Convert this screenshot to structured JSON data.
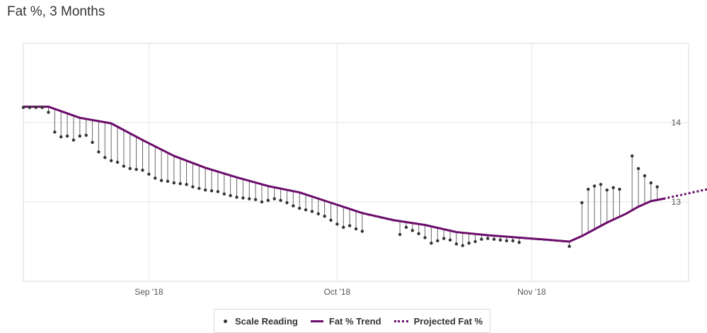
{
  "title": "Fat %, 3 Months",
  "legend": {
    "scale_reading": "Scale Reading",
    "trend": "Fat % Trend",
    "projected": "Projected Fat %"
  },
  "colors": {
    "trend": "#6b0c6b",
    "dots": "#333333",
    "stems": "#666666",
    "grid": "#e6e6e6",
    "missing_trend": "#d0d0d0"
  },
  "chart_data": {
    "type": "line",
    "title": "Fat %, 3 Months",
    "xlabel": "",
    "ylabel": "",
    "x_ticks": [
      "Sep '18",
      "Oct '18",
      "Nov '18"
    ],
    "y_ticks": [
      13,
      14
    ],
    "ylim": [
      12.0,
      15.0
    ],
    "xlim": [
      "2018-08-12",
      "2018-11-26"
    ],
    "grid": true,
    "legend_position": "bottom",
    "series": [
      {
        "name": "Scale Reading",
        "kind": "points",
        "points": [
          [
            "2018-08-12",
            14.19
          ],
          [
            "2018-08-13",
            14.19
          ],
          [
            "2018-08-14",
            14.19
          ],
          [
            "2018-08-15",
            14.19
          ],
          [
            "2018-08-16",
            14.13
          ],
          [
            "2018-08-17",
            13.88
          ],
          [
            "2018-08-18",
            13.82
          ],
          [
            "2018-08-19",
            13.83
          ],
          [
            "2018-08-20",
            13.78
          ],
          [
            "2018-08-21",
            13.83
          ],
          [
            "2018-08-22",
            13.84
          ],
          [
            "2018-08-23",
            13.75
          ],
          [
            "2018-08-24",
            13.63
          ],
          [
            "2018-08-25",
            13.56
          ],
          [
            "2018-08-26",
            13.52
          ],
          [
            "2018-08-27",
            13.5
          ],
          [
            "2018-08-28",
            13.45
          ],
          [
            "2018-08-29",
            13.42
          ],
          [
            "2018-08-30",
            13.41
          ],
          [
            "2018-08-31",
            13.4
          ],
          [
            "2018-09-01",
            13.35
          ],
          [
            "2018-09-02",
            13.3
          ],
          [
            "2018-09-03",
            13.27
          ],
          [
            "2018-09-04",
            13.26
          ],
          [
            "2018-09-05",
            13.24
          ],
          [
            "2018-09-06",
            13.23
          ],
          [
            "2018-09-07",
            13.22
          ],
          [
            "2018-09-08",
            13.19
          ],
          [
            "2018-09-09",
            13.17
          ],
          [
            "2018-09-10",
            13.15
          ],
          [
            "2018-09-11",
            13.14
          ],
          [
            "2018-09-12",
            13.13
          ],
          [
            "2018-09-13",
            13.1
          ],
          [
            "2018-09-14",
            13.08
          ],
          [
            "2018-09-15",
            13.06
          ],
          [
            "2018-09-16",
            13.05
          ],
          [
            "2018-09-17",
            13.04
          ],
          [
            "2018-09-18",
            13.03
          ],
          [
            "2018-09-19",
            13.0
          ],
          [
            "2018-09-20",
            13.02
          ],
          [
            "2018-09-21",
            13.04
          ],
          [
            "2018-09-22",
            13.02
          ],
          [
            "2018-09-23",
            12.99
          ],
          [
            "2018-09-24",
            12.95
          ],
          [
            "2018-09-25",
            12.92
          ],
          [
            "2018-09-26",
            12.9
          ],
          [
            "2018-09-27",
            12.88
          ],
          [
            "2018-09-28",
            12.85
          ],
          [
            "2018-09-29",
            12.82
          ],
          [
            "2018-09-30",
            12.77
          ],
          [
            "2018-10-01",
            12.72
          ],
          [
            "2018-10-02",
            12.68
          ],
          [
            "2018-10-03",
            12.7
          ],
          [
            "2018-10-04",
            12.66
          ],
          [
            "2018-10-05",
            12.63
          ],
          [
            "2018-10-11",
            12.59
          ],
          [
            "2018-10-12",
            12.68
          ],
          [
            "2018-10-13",
            12.64
          ],
          [
            "2018-10-14",
            12.6
          ],
          [
            "2018-10-15",
            12.55
          ],
          [
            "2018-10-16",
            12.48
          ],
          [
            "2018-10-17",
            12.51
          ],
          [
            "2018-10-18",
            12.54
          ],
          [
            "2018-10-19",
            12.52
          ],
          [
            "2018-10-20",
            12.47
          ],
          [
            "2018-10-21",
            12.45
          ],
          [
            "2018-10-22",
            12.48
          ],
          [
            "2018-10-23",
            12.5
          ],
          [
            "2018-10-24",
            12.53
          ],
          [
            "2018-10-25",
            12.54
          ],
          [
            "2018-10-26",
            12.53
          ],
          [
            "2018-10-27",
            12.52
          ],
          [
            "2018-10-28",
            12.51
          ],
          [
            "2018-10-29",
            12.51
          ],
          [
            "2018-10-30",
            12.49
          ],
          [
            "2018-11-07",
            12.44
          ],
          [
            "2018-11-09",
            12.99
          ],
          [
            "2018-11-10",
            13.16
          ],
          [
            "2018-11-11",
            13.2
          ],
          [
            "2018-11-12",
            13.22
          ],
          [
            "2018-11-13",
            13.15
          ],
          [
            "2018-11-14",
            13.18
          ],
          [
            "2018-11-15",
            13.16
          ],
          [
            "2018-11-17",
            13.58
          ],
          [
            "2018-11-18",
            13.42
          ],
          [
            "2018-11-19",
            13.33
          ],
          [
            "2018-11-20",
            13.24
          ],
          [
            "2018-11-21",
            13.19
          ]
        ]
      },
      {
        "name": "Fat % Trend",
        "kind": "line",
        "points": [
          [
            "2018-08-12",
            14.2
          ],
          [
            "2018-08-16",
            14.2
          ],
          [
            "2018-08-21",
            14.06
          ],
          [
            "2018-08-26",
            13.99
          ],
          [
            "2018-08-31",
            13.78
          ],
          [
            "2018-09-05",
            13.58
          ],
          [
            "2018-09-10",
            13.43
          ],
          [
            "2018-09-15",
            13.31
          ],
          [
            "2018-09-20",
            13.2
          ],
          [
            "2018-09-25",
            13.12
          ],
          [
            "2018-09-30",
            12.99
          ],
          [
            "2018-10-05",
            12.86
          ],
          [
            "2018-10-10",
            12.77
          ],
          [
            "2018-10-15",
            12.71
          ],
          [
            "2018-10-20",
            12.62
          ],
          [
            "2018-10-25",
            12.58
          ],
          [
            "2018-10-30",
            12.55
          ],
          [
            "2018-11-04",
            12.52
          ],
          [
            "2018-11-07",
            12.5
          ],
          [
            "2018-11-09",
            12.57
          ],
          [
            "2018-11-13",
            12.74
          ],
          [
            "2018-11-16",
            12.85
          ],
          [
            "2018-11-18",
            12.94
          ],
          [
            "2018-11-20",
            13.01
          ],
          [
            "2018-11-22",
            13.04
          ]
        ]
      },
      {
        "name": "Projected Fat %",
        "kind": "dotted-line",
        "points": [
          [
            "2018-11-22",
            13.04
          ],
          [
            "2018-11-29",
            13.16
          ]
        ]
      }
    ]
  }
}
